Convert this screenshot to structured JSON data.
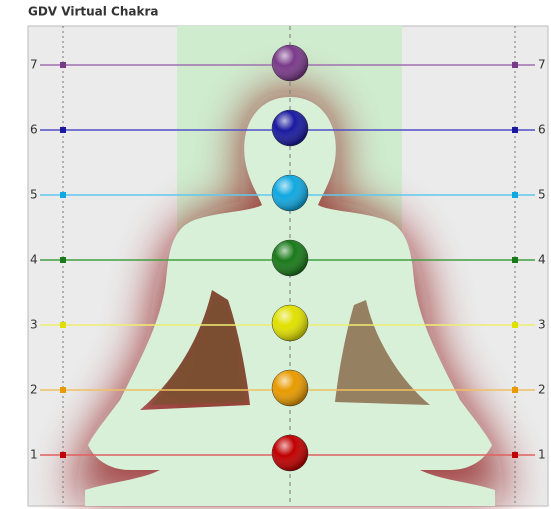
{
  "title": "GDV Virtual Chakra",
  "levels": [
    {
      "label": "1",
      "color": "#c00000",
      "line_color": "#e06060"
    },
    {
      "label": "2",
      "color": "#e89a00",
      "line_color": "#f0c060"
    },
    {
      "label": "3",
      "color": "#e0e000",
      "line_color": "#eeee70"
    },
    {
      "label": "4",
      "color": "#1a7a1a",
      "line_color": "#40a040"
    },
    {
      "label": "5",
      "color": "#10a8e0",
      "line_color": "#60c8f0"
    },
    {
      "label": "6",
      "color": "#1a1aa0",
      "line_color": "#5050c8"
    },
    {
      "label": "7",
      "color": "#7a3a8a",
      "line_color": "#a070b0"
    }
  ]
}
